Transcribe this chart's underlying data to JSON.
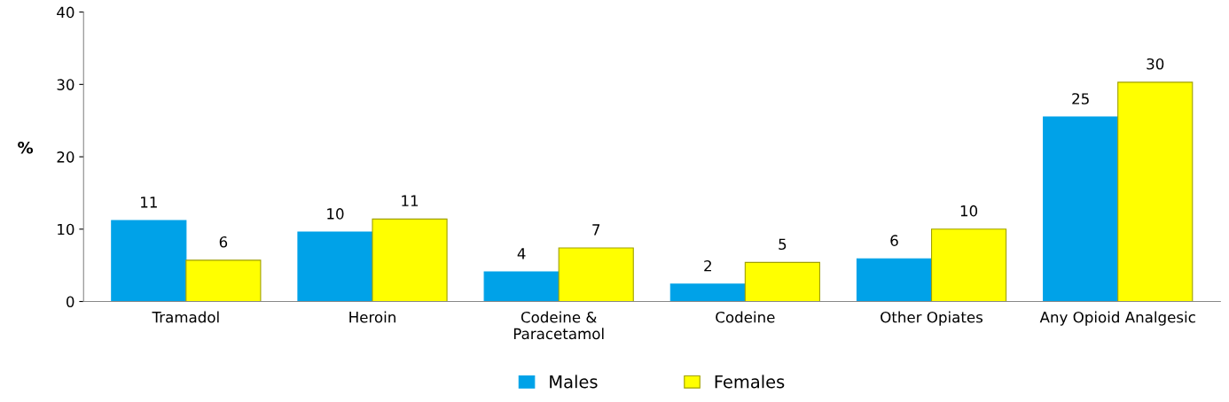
{
  "chart_data": {
    "type": "bar",
    "ylabel": "%",
    "categories": [
      "Tramadol",
      "Heroin",
      "Codeine &\nParacetamol",
      "Codeine",
      "Other Opiates",
      "Any Opioid Analgesic"
    ],
    "series": [
      {
        "name": "Males",
        "color": "#00a2e8",
        "values": [
          11.2,
          9.6,
          4.1,
          2.4,
          5.9,
          25.5
        ],
        "value_labels": [
          "11",
          "10",
          "4",
          "2",
          "6",
          "25"
        ]
      },
      {
        "name": "Females",
        "color": "#ffff00",
        "values": [
          5.7,
          11.4,
          7.4,
          5.4,
          10.0,
          30.3
        ],
        "value_labels": [
          "6",
          "11",
          "7",
          "5",
          "10",
          "30"
        ]
      }
    ],
    "ylim": [
      0,
      40
    ],
    "yticks": [
      0,
      10,
      20,
      30,
      40
    ],
    "grid": false,
    "legend": "bottom"
  }
}
